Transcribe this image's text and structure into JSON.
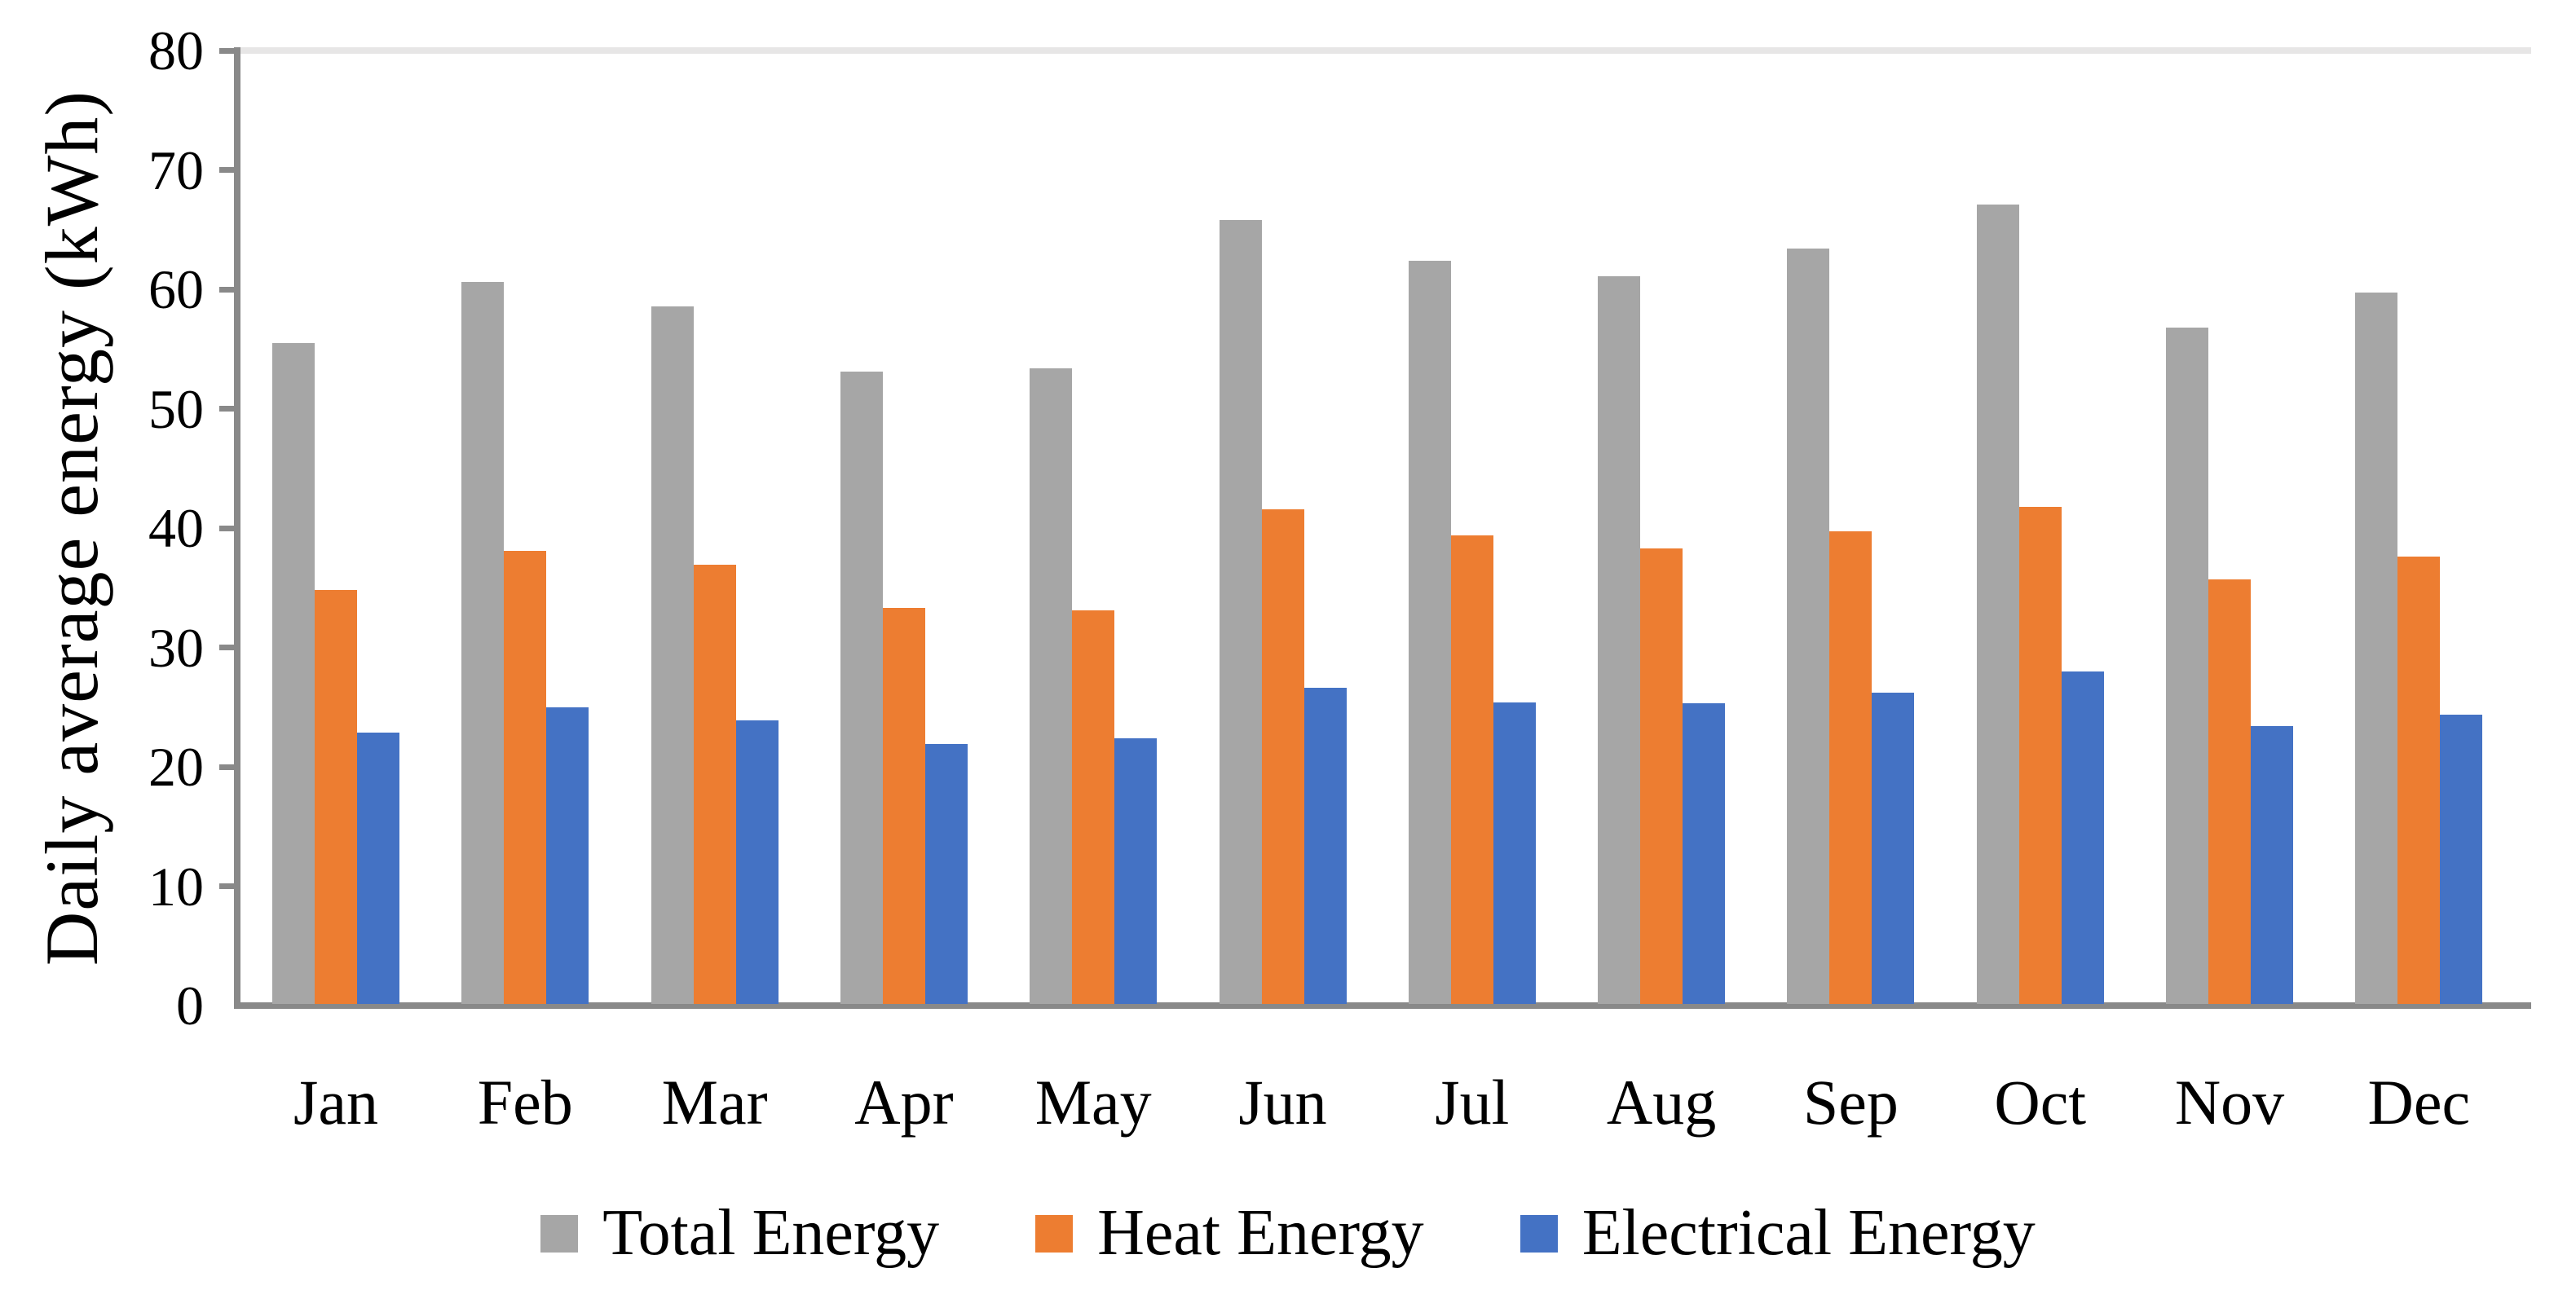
{
  "chart_data": {
    "type": "bar",
    "title": "",
    "xlabel": "",
    "ylabel": "Daily average energy (kWh)",
    "ylim": [
      0,
      80
    ],
    "y_ticks": [
      0,
      10,
      20,
      30,
      40,
      50,
      60,
      70,
      80
    ],
    "grid": false,
    "legend_position": "bottom",
    "categories": [
      "Jan",
      "Feb",
      "Mar",
      "Apr",
      "May",
      "Jun",
      "Jul",
      "Aug",
      "Sep",
      "Oct",
      "Nov",
      "Dec"
    ],
    "series": [
      {
        "name": "Total Energy",
        "color": "#A6A6A6",
        "values": [
          55.5,
          60.6,
          58.6,
          53.1,
          53.4,
          65.8,
          62.4,
          61.1,
          63.4,
          67.1,
          56.8,
          59.7
        ]
      },
      {
        "name": "Heat Energy",
        "color": "#ED7D31",
        "values": [
          34.8,
          38.1,
          36.9,
          33.3,
          33.1,
          41.6,
          39.4,
          38.3,
          39.7,
          41.8,
          35.7,
          37.6
        ]
      },
      {
        "name": "Electrical Energy",
        "color": "#4472C4",
        "values": [
          22.9,
          25.0,
          23.9,
          21.9,
          22.4,
          26.6,
          25.4,
          25.3,
          26.2,
          28.0,
          23.4,
          24.4
        ]
      }
    ],
    "axis_color": "#898989",
    "plot_border_color": "#E7E6E6"
  }
}
